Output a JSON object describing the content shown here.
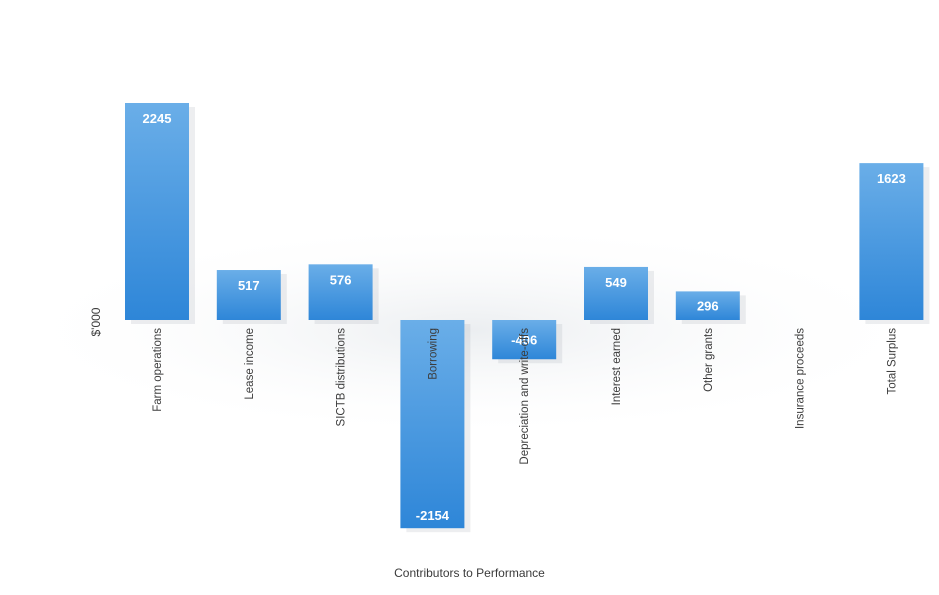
{
  "chart_data": {
    "type": "bar",
    "subtype": "waterfall-contributions",
    "caption": "Contributors to Performance",
    "ylabel": "$'000",
    "categories": [
      "Farm operations",
      "Lease income",
      "SICTB distributions",
      "Borrowing",
      "Depreciation and write-offs",
      "Interest earned",
      "Other grants",
      "Insurance proceeds",
      "Total Surplus"
    ],
    "values": [
      2245,
      517,
      576,
      -2154,
      -406,
      549,
      296,
      0,
      1623
    ],
    "data_labels": [
      "2245",
      "517",
      "576",
      "-2154",
      "-406",
      "549",
      "296",
      "",
      "1623"
    ],
    "ylim": [
      -2154,
      2245
    ],
    "grid": false,
    "legend": "none",
    "bar_color": "#2e86d8",
    "bar_color_light": "#6aaee8"
  }
}
